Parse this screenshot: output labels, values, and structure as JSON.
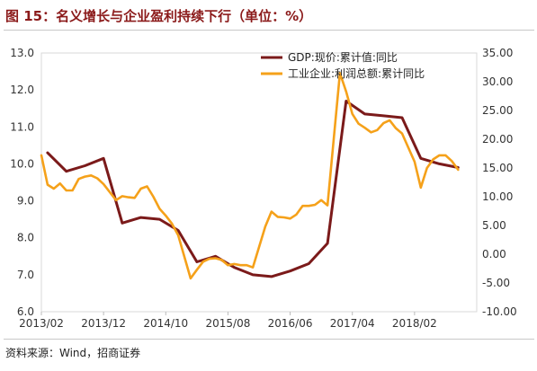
{
  "title": "图 15：名义增长与企业盈利持续下行（单位：%）",
  "source": "资料来源：Wind，招商证券",
  "chart_data": {
    "type": "line",
    "x_tick_labels": [
      "2013/02",
      "2013/12",
      "2014/10",
      "2015/08",
      "2016/06",
      "2017/04",
      "2018/02"
    ],
    "y_left": {
      "range": [
        6.0,
        13.0
      ],
      "ticks": [
        "6.0",
        "7.0",
        "8.0",
        "9.0",
        "10.0",
        "11.0",
        "12.0",
        "13.0"
      ]
    },
    "y_right": {
      "range": [
        -10,
        35
      ],
      "ticks": [
        "-10.00",
        "-5.00",
        "0.00",
        "5.00",
        "10.00",
        "15.00",
        "20.00",
        "25.00",
        "30.00",
        "35.00"
      ]
    },
    "legend_position": "top-right",
    "series": [
      {
        "name": "GDP:现价:累计值:同比",
        "axis": "left",
        "color": "#7b1a1a",
        "points": [
          [
            "2013/03",
            10.3
          ],
          [
            "2013/06",
            9.8
          ],
          [
            "2013/09",
            9.95
          ],
          [
            "2013/12",
            10.15
          ],
          [
            "2014/03",
            8.4
          ],
          [
            "2014/06",
            8.55
          ],
          [
            "2014/09",
            8.5
          ],
          [
            "2014/12",
            8.2
          ],
          [
            "2015/03",
            7.35
          ],
          [
            "2015/06",
            7.5
          ],
          [
            "2015/09",
            7.2
          ],
          [
            "2015/12",
            7.0
          ],
          [
            "2016/03",
            6.95
          ],
          [
            "2016/06",
            7.1
          ],
          [
            "2016/09",
            7.3
          ],
          [
            "2016/12",
            7.85
          ],
          [
            "2017/03",
            11.7
          ],
          [
            "2017/06",
            11.35
          ],
          [
            "2017/09",
            11.3
          ],
          [
            "2017/12",
            11.25
          ],
          [
            "2018/03",
            10.15
          ],
          [
            "2018/06",
            10.0
          ],
          [
            "2018/09",
            9.9
          ]
        ]
      },
      {
        "name": "工业企业:利润总额:累计同比",
        "axis": "right",
        "color": "#f5a11a",
        "points": [
          [
            "2013/02",
            17.2
          ],
          [
            "2013/03",
            12.1
          ],
          [
            "2013/04",
            11.4
          ],
          [
            "2013/05",
            12.3
          ],
          [
            "2013/06",
            11.1
          ],
          [
            "2013/07",
            11.1
          ],
          [
            "2013/08",
            13.1
          ],
          [
            "2013/09",
            13.5
          ],
          [
            "2013/10",
            13.7
          ],
          [
            "2013/11",
            13.2
          ],
          [
            "2013/12",
            12.2
          ],
          [
            "2014/02",
            9.4
          ],
          [
            "2014/03",
            10.1
          ],
          [
            "2014/04",
            9.9
          ],
          [
            "2014/05",
            9.8
          ],
          [
            "2014/06",
            11.4
          ],
          [
            "2014/07",
            11.8
          ],
          [
            "2014/08",
            10.0
          ],
          [
            "2014/09",
            7.9
          ],
          [
            "2014/10",
            6.7
          ],
          [
            "2014/11",
            5.3
          ],
          [
            "2014/12",
            3.3
          ],
          [
            "2015/02",
            -4.2
          ],
          [
            "2015/03",
            -2.7
          ],
          [
            "2015/04",
            -1.3
          ],
          [
            "2015/05",
            -0.8
          ],
          [
            "2015/06",
            -0.7
          ],
          [
            "2015/07",
            -1.0
          ],
          [
            "2015/08",
            -1.9
          ],
          [
            "2015/09",
            -1.7
          ],
          [
            "2015/10",
            -1.9
          ],
          [
            "2015/11",
            -1.9
          ],
          [
            "2015/12",
            -2.3
          ],
          [
            "2016/02",
            4.8
          ],
          [
            "2016/03",
            7.4
          ],
          [
            "2016/04",
            6.5
          ],
          [
            "2016/05",
            6.4
          ],
          [
            "2016/06",
            6.2
          ],
          [
            "2016/07",
            6.9
          ],
          [
            "2016/08",
            8.4
          ],
          [
            "2016/09",
            8.4
          ],
          [
            "2016/10",
            8.6
          ],
          [
            "2016/11",
            9.4
          ],
          [
            "2016/12",
            8.5
          ],
          [
            "2017/02",
            31.5
          ],
          [
            "2017/03",
            28.3
          ],
          [
            "2017/04",
            24.4
          ],
          [
            "2017/05",
            22.7
          ],
          [
            "2017/06",
            22.0
          ],
          [
            "2017/07",
            21.2
          ],
          [
            "2017/08",
            21.6
          ],
          [
            "2017/09",
            22.8
          ],
          [
            "2017/10",
            23.3
          ],
          [
            "2017/11",
            21.9
          ],
          [
            "2017/12",
            21.0
          ],
          [
            "2018/02",
            16.1
          ],
          [
            "2018/03",
            11.6
          ],
          [
            "2018/04",
            15.0
          ],
          [
            "2018/05",
            16.5
          ],
          [
            "2018/06",
            17.2
          ],
          [
            "2018/07",
            17.2
          ],
          [
            "2018/08",
            16.2
          ],
          [
            "2018/09",
            14.7
          ]
        ]
      }
    ]
  }
}
